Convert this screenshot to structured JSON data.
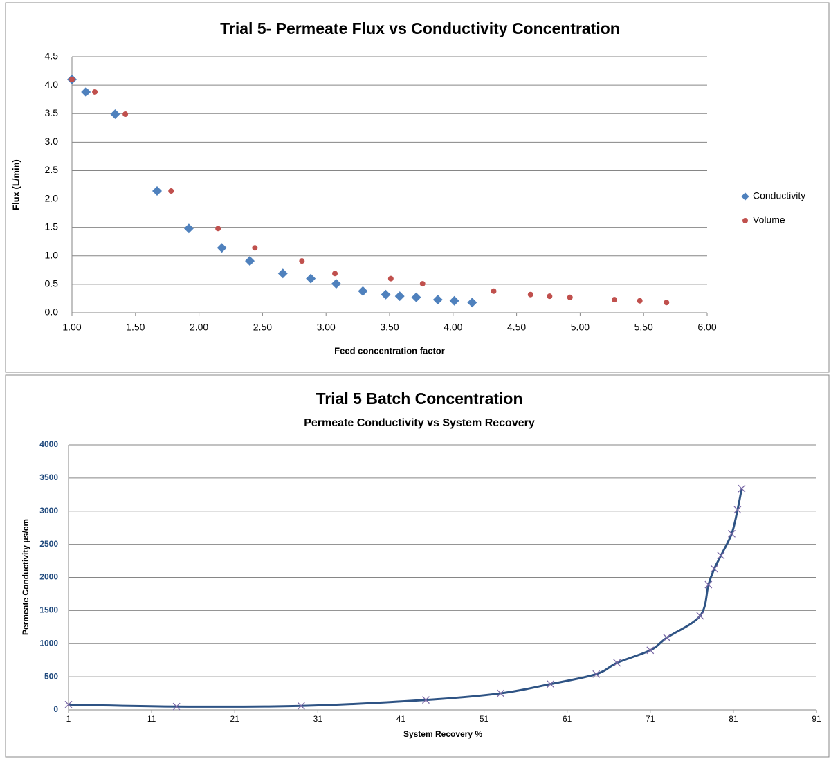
{
  "chart_data": [
    {
      "type": "scatter",
      "title": "Trial 5- Permeate Flux vs Conductivity Concentration",
      "x_label": "Feed concentration factor",
      "y_label": "Flux (L/min)",
      "xlim": [
        1,
        6
      ],
      "xticks": [
        {
          "value": 1,
          "label": "1.00"
        },
        {
          "value": 1.5,
          "label": "1.50"
        },
        {
          "value": 2,
          "label": "2.00"
        },
        {
          "value": 2.5,
          "label": "2.50"
        },
        {
          "value": 3,
          "label": "3.00"
        },
        {
          "value": 3.5,
          "label": "3.50"
        },
        {
          "value": 4,
          "label": "4.00"
        },
        {
          "value": 4.5,
          "label": "4.50"
        },
        {
          "value": 5,
          "label": "5.00"
        },
        {
          "value": 5.5,
          "label": "5.50"
        },
        {
          "value": 6,
          "label": "6.00"
        }
      ],
      "ylim": [
        0,
        4.5
      ],
      "yticks": [
        {
          "value": 0,
          "label": "0.0"
        },
        0.5,
        {
          "value": 1,
          "label": "1.0"
        },
        1.5,
        {
          "value": 2,
          "label": "2.0"
        },
        2.5,
        {
          "value": 3,
          "label": "3.0"
        },
        3.5,
        {
          "value": 4,
          "label": "4.0"
        },
        4.5
      ],
      "grid": true,
      "legend": "right",
      "series": [
        {
          "name": "Conductivity",
          "color": "#4f81bd",
          "marker": "diamond",
          "x": [
            1.0,
            1.11,
            1.34,
            1.67,
            1.92,
            2.18,
            2.4,
            2.66,
            2.88,
            3.08,
            3.29,
            3.47,
            3.58,
            3.71,
            3.88,
            4.01,
            4.15
          ],
          "values": [
            4.1,
            3.88,
            3.49,
            2.14,
            1.48,
            1.14,
            0.91,
            0.69,
            0.6,
            0.51,
            0.38,
            0.32,
            0.29,
            0.27,
            0.23,
            0.21,
            0.18
          ]
        },
        {
          "name": "Volume",
          "color": "#c0504d",
          "marker": "circle",
          "x": [
            1.0,
            1.18,
            1.42,
            1.78,
            2.15,
            2.44,
            2.81,
            3.07,
            3.51,
            3.76,
            4.32,
            4.61,
            4.76,
            4.92,
            5.27,
            5.47,
            5.68
          ],
          "values": [
            4.1,
            3.88,
            3.49,
            2.14,
            1.48,
            1.14,
            0.91,
            0.69,
            0.6,
            0.51,
            0.38,
            0.32,
            0.29,
            0.27,
            0.23,
            0.21,
            0.18
          ]
        }
      ]
    },
    {
      "type": "line",
      "title": "Trial 5 Batch Concentration",
      "subtitle": "Permeate Conductivity vs System Recovery",
      "x_label": "System Recovery %",
      "y_label": "Permeate Conductivity μs/cm",
      "xlim": [
        1,
        91
      ],
      "xticks": [
        1,
        11,
        21,
        31,
        41,
        51,
        61,
        71,
        81,
        91
      ],
      "ylim": [
        0,
        4000
      ],
      "yticks": [
        0,
        500,
        1000,
        1500,
        2000,
        2500,
        3000,
        3500,
        4000
      ],
      "grid": true,
      "color": "#2e5384",
      "marker_color": "#7a68a6",
      "x": [
        1,
        14,
        29,
        44,
        53,
        59,
        64.5,
        67,
        71,
        73,
        77,
        78,
        78.7,
        79.5,
        80.8,
        81.5,
        82
      ],
      "values": [
        80,
        50,
        60,
        150,
        250,
        390,
        540,
        710,
        900,
        1090,
        1420,
        1890,
        2130,
        2330,
        2660,
        3020,
        3340
      ]
    }
  ]
}
